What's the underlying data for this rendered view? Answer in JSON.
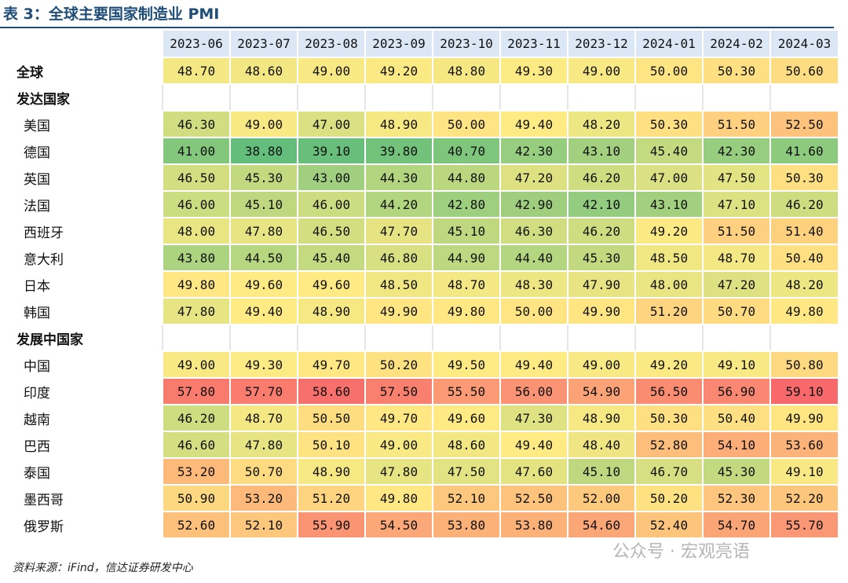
{
  "title": "表 3：全球主要国家制造业 PMI",
  "source": "资料来源：iFind，信达证券研发中心",
  "watermark": "公众号 · 宏观亮语",
  "columns": [
    "2023-06",
    "2023-07",
    "2023-08",
    "2023-09",
    "2023-10",
    "2023-11",
    "2023-12",
    "2024-01",
    "2024-02",
    "2024-03"
  ],
  "rows": [
    {
      "label": "全球",
      "type": "total",
      "values": [
        "48.70",
        "48.60",
        "49.00",
        "49.20",
        "48.80",
        "49.30",
        "49.00",
        "50.00",
        "50.30",
        "50.60"
      ]
    },
    {
      "label": "发达国家",
      "type": "group",
      "values": []
    },
    {
      "label": "美国",
      "type": "country",
      "values": [
        "46.30",
        "49.00",
        "47.00",
        "48.90",
        "50.00",
        "49.40",
        "48.20",
        "50.30",
        "51.50",
        "52.50"
      ]
    },
    {
      "label": "德国",
      "type": "country",
      "values": [
        "41.00",
        "38.80",
        "39.10",
        "39.80",
        "40.70",
        "42.30",
        "43.10",
        "45.40",
        "42.30",
        "41.60"
      ]
    },
    {
      "label": "英国",
      "type": "country",
      "values": [
        "46.50",
        "45.30",
        "43.00",
        "44.30",
        "44.80",
        "47.20",
        "46.20",
        "47.00",
        "47.50",
        "50.30"
      ]
    },
    {
      "label": "法国",
      "type": "country",
      "values": [
        "46.00",
        "45.10",
        "46.00",
        "44.20",
        "42.80",
        "42.90",
        "42.10",
        "43.10",
        "47.10",
        "46.20"
      ]
    },
    {
      "label": "西班牙",
      "type": "country",
      "values": [
        "48.00",
        "47.80",
        "46.50",
        "47.70",
        "45.10",
        "46.30",
        "46.20",
        "49.20",
        "51.50",
        "51.40"
      ]
    },
    {
      "label": "意大利",
      "type": "country",
      "values": [
        "43.80",
        "44.50",
        "45.40",
        "46.80",
        "44.90",
        "44.40",
        "45.30",
        "48.50",
        "48.70",
        "50.40"
      ]
    },
    {
      "label": "日本",
      "type": "country",
      "values": [
        "49.80",
        "49.60",
        "49.60",
        "48.50",
        "48.70",
        "48.30",
        "47.90",
        "48.00",
        "47.20",
        "48.20"
      ]
    },
    {
      "label": "韩国",
      "type": "country",
      "values": [
        "47.80",
        "49.40",
        "48.90",
        "49.90",
        "49.80",
        "50.00",
        "49.90",
        "51.20",
        "50.70",
        "49.80"
      ]
    },
    {
      "label": "发展中国家",
      "type": "group",
      "values": []
    },
    {
      "label": "中国",
      "type": "country",
      "values": [
        "49.00",
        "49.30",
        "49.70",
        "50.20",
        "49.50",
        "49.40",
        "49.00",
        "49.20",
        "49.10",
        "50.80"
      ]
    },
    {
      "label": "印度",
      "type": "country",
      "values": [
        "57.80",
        "57.70",
        "58.60",
        "57.50",
        "55.50",
        "56.00",
        "54.90",
        "56.50",
        "56.90",
        "59.10"
      ]
    },
    {
      "label": "越南",
      "type": "country",
      "values": [
        "46.20",
        "48.70",
        "50.50",
        "49.70",
        "49.60",
        "47.30",
        "48.90",
        "50.30",
        "50.40",
        "49.90"
      ]
    },
    {
      "label": "巴西",
      "type": "country",
      "values": [
        "46.60",
        "47.80",
        "50.10",
        "49.00",
        "48.60",
        "49.40",
        "48.40",
        "52.80",
        "54.10",
        "53.60"
      ]
    },
    {
      "label": "泰国",
      "type": "country",
      "values": [
        "53.20",
        "50.70",
        "48.90",
        "47.80",
        "47.50",
        "47.60",
        "45.10",
        "46.70",
        "45.30",
        "49.10"
      ]
    },
    {
      "label": "墨西哥",
      "type": "country",
      "values": [
        "50.90",
        "53.20",
        "51.20",
        "49.80",
        "52.10",
        "52.50",
        "52.00",
        "50.20",
        "52.30",
        "52.20"
      ]
    },
    {
      "label": "俄罗斯",
      "type": "country",
      "values": [
        "52.60",
        "52.10",
        "55.90",
        "54.50",
        "53.80",
        "53.80",
        "54.60",
        "52.40",
        "54.70",
        "55.70"
      ]
    }
  ],
  "color_scale": {
    "low": "#63be7b",
    "mid": "#ffeb84",
    "high": "#f8696b"
  }
}
